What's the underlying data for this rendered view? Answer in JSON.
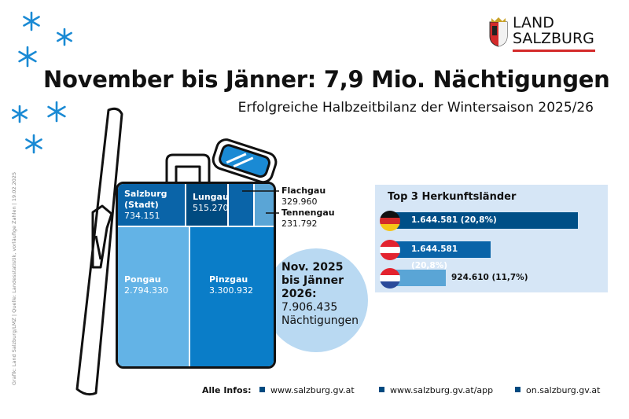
{
  "header": {
    "title": "November bis Jänner: 7,9 Mio. Nächtigungen",
    "subtitle": "Erfolgreiche Halbzeitbilanz der Wintersaison 2025/26",
    "logo": {
      "line1": "LAND",
      "line2": "SALZBURG"
    }
  },
  "credit": "Grafik: Land Salzburg/LMZ | Quelle: Landesstatistik, vorläufige Zahlen | 19.02.2025",
  "total": {
    "line1": "Nov. 2025",
    "line2": "bis Jänner",
    "line3": "2026:",
    "value": "7.906.435",
    "unit": "Nächtigungen"
  },
  "chart_data": [
    {
      "type": "treemap",
      "items": [
        {
          "name": "Salzburg (Stadt)",
          "label": "734.151",
          "value": 734151,
          "color": "#0a64a8"
        },
        {
          "name": "Lungau",
          "label": "515.270",
          "value": 515270,
          "color": "#004a80"
        },
        {
          "name": "Flachgau",
          "label": "329.960",
          "value": 329960,
          "color": "#0a64a8"
        },
        {
          "name": "Tennengau",
          "label": "231.792",
          "value": 231792,
          "color": "#5aa5d6"
        },
        {
          "name": "Pongau",
          "label": "2.794.330",
          "value": 2794330,
          "color": "#63b3e6"
        },
        {
          "name": "Pinzgau",
          "label": "3.300.932",
          "value": 3300932,
          "color": "#0a7dc8"
        }
      ]
    },
    {
      "type": "bar",
      "title": "Top 3 Herkunftsländer",
      "categories": [
        "Deutschland",
        "Österreich",
        "Niederlande"
      ],
      "values": [
        1644581,
        1644581,
        924610
      ],
      "labels": [
        "1.644.581 (20,8%)",
        "1.644.581 (20,8%)",
        "924.610 (11,7%)"
      ],
      "colors": [
        "#004f87",
        "#0a64a8",
        "#5aa5d6"
      ]
    }
  ],
  "footer": {
    "label": "Alle Infos:",
    "links": [
      "www.salzburg.gv.at",
      "www.salzburg.gv.at/app",
      "on.salzburg.gv.at"
    ]
  }
}
